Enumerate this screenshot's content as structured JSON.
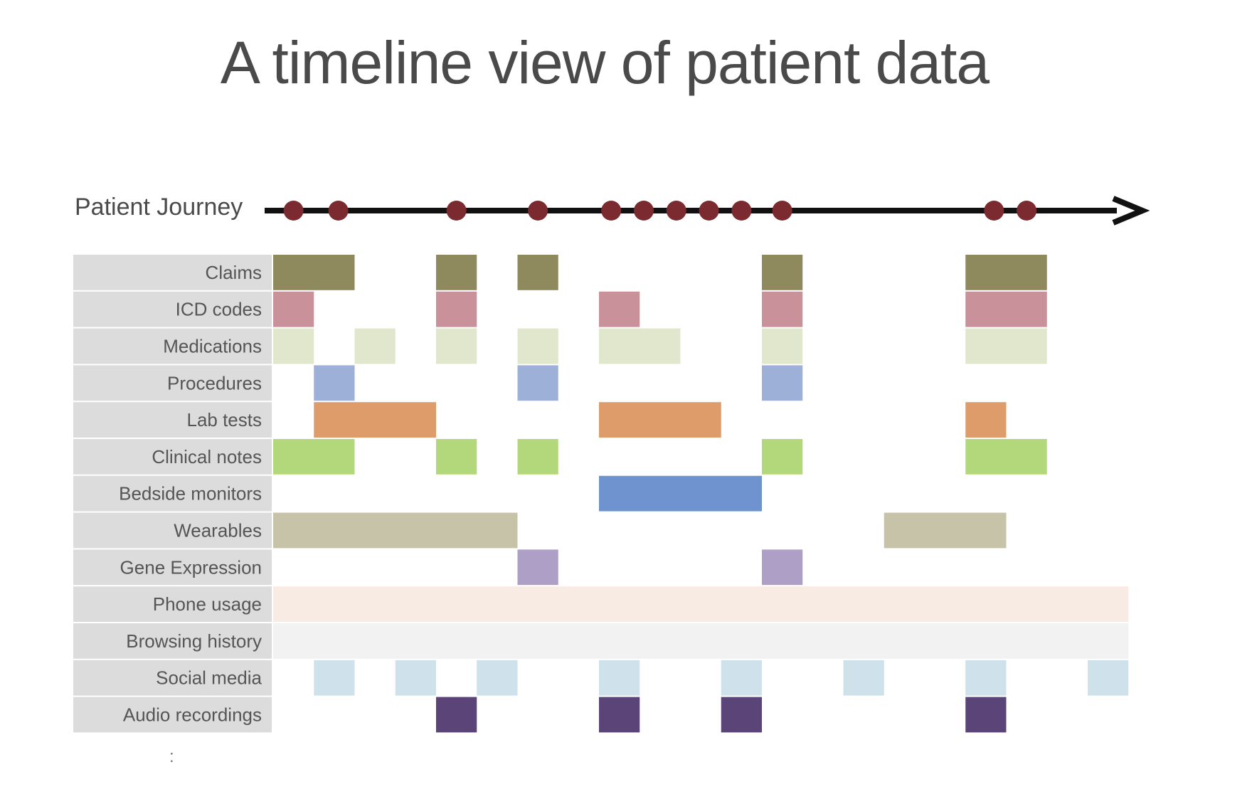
{
  "title": "A timeline view of patient data",
  "journey": {
    "label": "Patient Journey",
    "events": [
      0.25,
      0.8,
      2.25,
      3.25,
      4.15,
      4.55,
      4.95,
      5.35,
      5.75,
      6.25,
      8.85,
      9.25
    ]
  },
  "rows": [
    {
      "label": "Claims",
      "color": "#8f8a5e",
      "segments": [
        [
          0,
          1
        ],
        [
          2,
          2.5
        ],
        [
          3,
          3.5
        ],
        [
          6,
          6.5
        ],
        [
          8.5,
          9.5
        ]
      ]
    },
    {
      "label": "ICD codes",
      "color": "#c9919a",
      "segments": [
        [
          0,
          0.5
        ],
        [
          2,
          2.5
        ],
        [
          4,
          4.5
        ],
        [
          6,
          6.5
        ],
        [
          8.5,
          9.5
        ]
      ]
    },
    {
      "label": "Medications",
      "color": "#e1e7cc",
      "segments": [
        [
          0,
          0.5
        ],
        [
          1,
          1.5
        ],
        [
          2,
          2.5
        ],
        [
          3,
          3.5
        ],
        [
          4,
          5
        ],
        [
          6,
          6.5
        ],
        [
          8.5,
          9.5
        ]
      ]
    },
    {
      "label": "Procedures",
      "color": "#9db0d8",
      "segments": [
        [
          0.5,
          1
        ],
        [
          3,
          3.5
        ],
        [
          6,
          6.5
        ]
      ]
    },
    {
      "label": "Lab tests",
      "color": "#de9c6a",
      "segments": [
        [
          0.5,
          2
        ],
        [
          4,
          5.5
        ],
        [
          8.5,
          9
        ]
      ]
    },
    {
      "label": "Clinical notes",
      "color": "#b3d87c",
      "segments": [
        [
          0,
          1
        ],
        [
          2,
          2.5
        ],
        [
          3,
          3.5
        ],
        [
          6,
          6.5
        ],
        [
          8.5,
          9.5
        ]
      ]
    },
    {
      "label": "Bedside monitors",
      "color": "#6f93cf",
      "segments": [
        [
          4,
          6
        ]
      ]
    },
    {
      "label": "Wearables",
      "color": "#c6c3a8",
      "segments": [
        [
          0,
          3
        ],
        [
          7.5,
          9
        ]
      ]
    },
    {
      "label": "Gene Expression",
      "color": "#ae9fc7",
      "segments": [
        [
          3,
          3.5
        ],
        [
          6,
          6.5
        ]
      ]
    },
    {
      "label": "Phone usage",
      "color": "#f8ebe3",
      "segments": [
        [
          0,
          10.5
        ]
      ]
    },
    {
      "label": "Browsing history",
      "color": "#f2f2f3",
      "segments": [
        [
          0,
          10.5
        ]
      ]
    },
    {
      "label": "Social media",
      "color": "#cfe1ea",
      "segments": [
        [
          0.5,
          1
        ],
        [
          1.5,
          2
        ],
        [
          2.5,
          3
        ],
        [
          4,
          4.5
        ],
        [
          5.5,
          6
        ],
        [
          7,
          7.5
        ],
        [
          8.5,
          9
        ],
        [
          10,
          10.5
        ]
      ]
    },
    {
      "label": "Audio recordings",
      "color": "#5a4478",
      "segments": [
        [
          2,
          2.5
        ],
        [
          4,
          4.5
        ],
        [
          5.5,
          6
        ],
        [
          8.5,
          9
        ]
      ]
    }
  ],
  "more_indicator": ":",
  "colors": {
    "axis": "#111111",
    "event_dot": "#7b2b30",
    "label_cell": "#dcdcdd"
  }
}
